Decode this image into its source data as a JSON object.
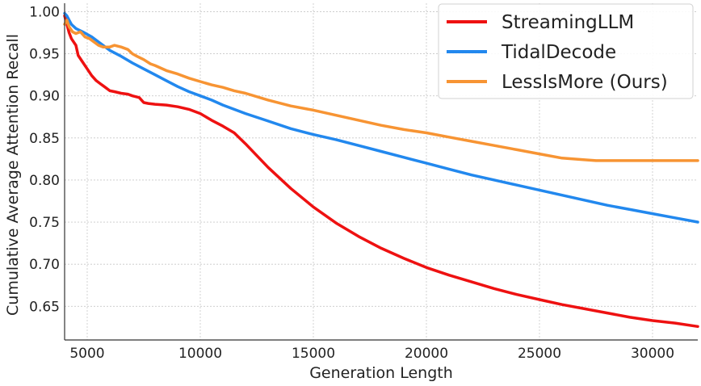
{
  "chart_data": {
    "type": "line",
    "title": "",
    "xlabel": "Generation Length",
    "ylabel": "Cumulative Average Attention Recall",
    "xlim": [
      4000,
      32000
    ],
    "ylim": [
      0.61,
      1.01
    ],
    "xticks": [
      5000,
      10000,
      15000,
      20000,
      25000,
      30000
    ],
    "yticks": [
      0.65,
      0.7,
      0.75,
      0.8,
      0.85,
      0.9,
      0.95,
      1.0
    ],
    "xtick_labels": [
      "5000",
      "10000",
      "15000",
      "20000",
      "25000",
      "30000"
    ],
    "ytick_labels": [
      "0.65",
      "0.70",
      "0.75",
      "0.80",
      "0.85",
      "0.90",
      "0.95",
      "1.00"
    ],
    "grid": true,
    "legend_position": "top-right",
    "series": [
      {
        "name": "StreamingLLM",
        "color": "#ee1111",
        "x": [
          4000,
          4100,
          4200,
          4300,
          4500,
          4600,
          4800,
          5000,
          5200,
          5400,
          5600,
          5800,
          6000,
          6200,
          6500,
          6800,
          7000,
          7300,
          7500,
          7700,
          8000,
          8500,
          9000,
          9500,
          10000,
          10500,
          11000,
          11500,
          12000,
          13000,
          14000,
          15000,
          16000,
          17000,
          18000,
          19000,
          20000,
          21000,
          22000,
          23000,
          24000,
          25000,
          26000,
          27000,
          28000,
          29000,
          30000,
          31000,
          32000
        ],
        "y": [
          0.995,
          0.985,
          0.975,
          0.968,
          0.96,
          0.948,
          0.94,
          0.932,
          0.924,
          0.918,
          0.914,
          0.91,
          0.906,
          0.905,
          0.903,
          0.902,
          0.9,
          0.898,
          0.892,
          0.891,
          0.89,
          0.889,
          0.887,
          0.884,
          0.879,
          0.871,
          0.864,
          0.856,
          0.843,
          0.815,
          0.79,
          0.768,
          0.749,
          0.733,
          0.719,
          0.707,
          0.696,
          0.687,
          0.679,
          0.671,
          0.664,
          0.658,
          0.652,
          0.647,
          0.642,
          0.637,
          0.633,
          0.63,
          0.626
        ]
      },
      {
        "name": "TidalDecode",
        "color": "#2288ee",
        "x": [
          4000,
          4100,
          4200,
          4300,
          4500,
          4800,
          5200,
          5600,
          6000,
          6500,
          7000,
          7500,
          8000,
          8500,
          9000,
          9500,
          10000,
          10500,
          11000,
          12000,
          13000,
          14000,
          15000,
          16000,
          17000,
          18000,
          19000,
          20000,
          21000,
          22000,
          23000,
          24000,
          25000,
          26000,
          27000,
          28000,
          29000,
          30000,
          31000,
          32000
        ],
        "y": [
          0.998,
          0.995,
          0.99,
          0.985,
          0.98,
          0.976,
          0.97,
          0.962,
          0.954,
          0.947,
          0.939,
          0.932,
          0.925,
          0.918,
          0.911,
          0.905,
          0.9,
          0.895,
          0.889,
          0.879,
          0.87,
          0.861,
          0.854,
          0.848,
          0.841,
          0.834,
          0.827,
          0.82,
          0.813,
          0.806,
          0.8,
          0.794,
          0.788,
          0.782,
          0.776,
          0.77,
          0.765,
          0.76,
          0.755,
          0.75
        ]
      },
      {
        "name": "LessIsMore (Ours)",
        "color": "#f79433",
        "x": [
          4000,
          4100,
          4200,
          4350,
          4500,
          4700,
          4900,
          5100,
          5300,
          5500,
          5700,
          6000,
          6200,
          6500,
          6800,
          7000,
          7200,
          7500,
          7800,
          8000,
          8500,
          9000,
          9500,
          10000,
          10500,
          11000,
          11500,
          12000,
          13000,
          14000,
          15000,
          16000,
          17000,
          18000,
          19000,
          20000,
          21000,
          22000,
          23000,
          24000,
          25000,
          26000,
          27000,
          27500,
          28000,
          29000,
          30000,
          31000,
          32000
        ],
        "y": [
          0.985,
          0.99,
          0.982,
          0.976,
          0.974,
          0.976,
          0.97,
          0.968,
          0.964,
          0.96,
          0.958,
          0.958,
          0.96,
          0.958,
          0.955,
          0.95,
          0.947,
          0.943,
          0.938,
          0.936,
          0.93,
          0.926,
          0.921,
          0.917,
          0.913,
          0.91,
          0.906,
          0.903,
          0.895,
          0.888,
          0.883,
          0.877,
          0.871,
          0.865,
          0.86,
          0.856,
          0.851,
          0.846,
          0.841,
          0.836,
          0.831,
          0.826,
          0.824,
          0.823,
          0.823,
          0.823,
          0.823,
          0.823,
          0.823
        ]
      }
    ]
  }
}
